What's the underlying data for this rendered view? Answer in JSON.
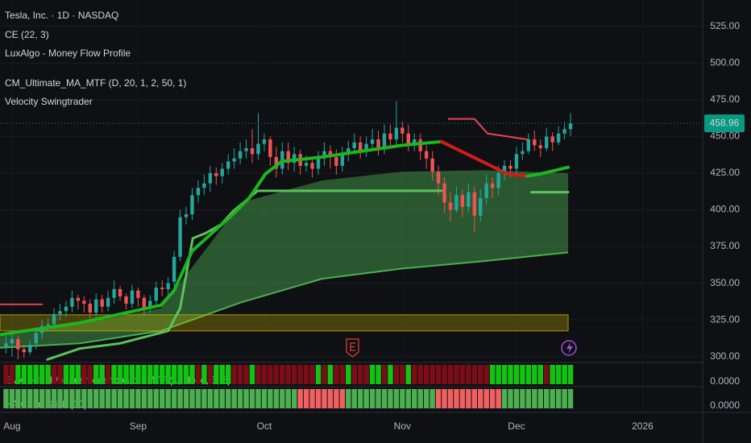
{
  "chart_data": {
    "type": "candlestick",
    "title": "Tesla, Inc. · 1D · NASDAQ",
    "indicators": [
      "CE (22, 3)",
      "LuxAlgo - Money Flow Profile",
      "CM_Ultimate_MA_MTF (D, 20, 1, 2, 50, 1)",
      "Velocity Swingtrader"
    ],
    "xlim": [
      -1,
      116
    ],
    "xticks": [
      {
        "value": 1,
        "label": "Aug"
      },
      {
        "value": 22,
        "label": "Sep"
      },
      {
        "value": 43,
        "label": "Oct"
      },
      {
        "value": 66,
        "label": "Nov"
      },
      {
        "value": 85,
        "label": "Dec"
      },
      {
        "value": 106,
        "label": "2026"
      }
    ],
    "ylim": [
      296,
      543
    ],
    "yticks": [
      {
        "value": 300,
        "label": "300.00"
      },
      {
        "value": 325,
        "label": "325.00"
      },
      {
        "value": 350,
        "label": "350.00"
      },
      {
        "value": 375,
        "label": "375.00"
      },
      {
        "value": 400,
        "label": "400.00"
      },
      {
        "value": 425,
        "label": "425.00"
      },
      {
        "value": 450,
        "label": "450.00"
      },
      {
        "value": 475,
        "label": "475.00"
      },
      {
        "value": 500,
        "label": "500.00"
      },
      {
        "value": 525,
        "label": "525.00"
      }
    ],
    "grid": true,
    "up_color": "#26a69a",
    "down_color": "#ef5350",
    "open": [
      306,
      309,
      312,
      305,
      303,
      309,
      316,
      321,
      322,
      329,
      331,
      334,
      340,
      338,
      336,
      330,
      339,
      334,
      340,
      346,
      341,
      336,
      345,
      340,
      333,
      338,
      347,
      346,
      351,
      368,
      395,
      397,
      410,
      415,
      418,
      425,
      423,
      428,
      433,
      435,
      440,
      442,
      438,
      445,
      448,
      436,
      428,
      440,
      432,
      438,
      430,
      432,
      428,
      435,
      440,
      436,
      430,
      438,
      442,
      446,
      440,
      445,
      448,
      441,
      452,
      448,
      456,
      452,
      445,
      448,
      440,
      435,
      426,
      418,
      405,
      400,
      410,
      402,
      412,
      396,
      408,
      418,
      415,
      425,
      430,
      428,
      438,
      440,
      448,
      444,
      442,
      450,
      446,
      452,
      455
    ],
    "high": [
      314,
      316,
      314,
      308,
      311,
      319,
      325,
      326,
      333,
      336,
      338,
      345,
      342,
      341,
      339,
      343,
      342,
      345,
      352,
      348,
      343,
      349,
      347,
      342,
      342,
      351,
      352,
      354,
      372,
      400,
      402,
      415,
      420,
      424,
      430,
      429,
      432,
      438,
      442,
      446,
      448,
      455,
      466,
      452,
      450,
      443,
      446,
      446,
      443,
      441,
      437,
      436,
      440,
      446,
      444,
      441,
      443,
      447,
      452,
      450,
      450,
      455,
      454,
      458,
      458,
      474,
      460,
      458,
      452,
      452,
      444,
      440,
      430,
      422,
      412,
      416,
      414,
      418,
      416,
      414,
      424,
      422,
      430,
      434,
      434,
      443,
      446,
      452,
      454,
      448,
      456,
      453,
      457,
      460,
      466
    ],
    "low": [
      302,
      300,
      298,
      299,
      301,
      305,
      312,
      317,
      318,
      325,
      327,
      330,
      332,
      330,
      326,
      327,
      330,
      331,
      336,
      338,
      332,
      333,
      334,
      328,
      330,
      334,
      341,
      342,
      346,
      365,
      390,
      393,
      405,
      410,
      412,
      417,
      418,
      424,
      428,
      431,
      435,
      432,
      434,
      440,
      430,
      422,
      424,
      427,
      426,
      424,
      426,
      422,
      424,
      430,
      428,
      424,
      426,
      433,
      438,
      435,
      436,
      440,
      437,
      438,
      442,
      444,
      446,
      440,
      440,
      434,
      428,
      420,
      410,
      398,
      392,
      398,
      395,
      398,
      385,
      392,
      404,
      408,
      410,
      420,
      422,
      424,
      434,
      438,
      440,
      436,
      440,
      440,
      444,
      448,
      450
    ],
    "close": [
      309,
      312,
      305,
      303,
      308,
      316,
      321,
      322,
      329,
      331,
      334,
      340,
      338,
      336,
      330,
      339,
      334,
      340,
      346,
      341,
      336,
      345,
      340,
      333,
      338,
      347,
      346,
      350,
      368,
      395,
      397,
      410,
      415,
      418,
      425,
      423,
      428,
      433,
      435,
      440,
      442,
      438,
      445,
      448,
      436,
      428,
      440,
      432,
      438,
      430,
      432,
      428,
      435,
      440,
      436,
      430,
      438,
      442,
      446,
      440,
      445,
      448,
      441,
      452,
      448,
      456,
      452,
      445,
      448,
      440,
      435,
      426,
      418,
      405,
      400,
      410,
      402,
      412,
      396,
      408,
      418,
      415,
      425,
      430,
      428,
      438,
      440,
      448,
      444,
      442,
      450,
      446,
      452,
      455,
      458.96
    ],
    "last_price": 458.96,
    "last_price_color": "#089981",
    "band": {
      "color": "#4caf50",
      "x": [
        -1,
        12.3,
        25.8,
        39.2,
        52.6,
        66,
        79.5,
        93.6
      ],
      "upper": [
        315,
        322,
        333,
        405,
        420,
        426,
        427,
        425
      ],
      "lower": [
        306,
        309,
        317.5,
        337,
        353,
        360,
        365,
        371
      ]
    },
    "zone": {
      "color": "#c8b400",
      "from": 317.5,
      "to": 328.5,
      "x": [
        -1,
        93.6
      ]
    },
    "lines": [
      {
        "color": "#e04050",
        "width": 2,
        "x": [
          -1,
          6
        ],
        "values": [
          335.6,
          335.6
        ]
      },
      {
        "color": "#5cc35c",
        "width": 3,
        "x": [
          6.9,
          12.3,
          19,
          27,
          29,
          31.1,
          33.2,
          35.8,
          37.8,
          41.9,
          72.5,
          null,
          87.5,
          93.6
        ],
        "values": [
          298,
          305.5,
          309,
          317.5,
          333,
          380.6,
          384,
          390,
          399,
          413,
          413,
          null,
          412,
          412
        ]
      },
      {
        "color": "#1fb51f",
        "width": 4,
        "x": [
          -1,
          12.3,
          25.8,
          28,
          31,
          37.8,
          40.5,
          43.2,
          45.9,
          52.6,
          59.3,
          66,
          72.5
        ],
        "values": [
          315,
          323,
          335,
          345,
          372,
          397,
          408,
          424.5,
          433,
          436,
          440,
          444,
          446.5
        ]
      },
      {
        "color": "#d01c1c",
        "width": 4,
        "x": [
          72.5,
          78,
          83.5,
          86.8
        ],
        "values": [
          446.5,
          435.5,
          424.5,
          423
        ]
      },
      {
        "color": "#1fb51f",
        "width": 4,
        "x": [
          86.8,
          89,
          93.6
        ],
        "values": [
          423,
          424.5,
          429
        ]
      },
      {
        "color": "#e8454f",
        "width": 2,
        "x": [
          73.7,
          78,
          80.2,
          86.8
        ],
        "values": [
          462,
          462,
          452,
          448
        ]
      }
    ],
    "panes": [
      {
        "title": "EMA bullish/bearish dashboard - MTF (1, close, 5, 5)",
        "ticks": [
          {
            "value": 0,
            "label": "0.0000"
          }
        ],
        "runs": [
          [
            0,
            1,
            "#7b0d17"
          ],
          [
            2,
            7,
            "#13c313"
          ],
          [
            8,
            9,
            "#7b0d17"
          ],
          [
            10,
            12,
            "#13c313"
          ],
          [
            13,
            14,
            "#7b0d17"
          ],
          [
            15,
            16,
            "#13c313"
          ],
          [
            17,
            17,
            "#7b0d17"
          ],
          [
            18,
            31,
            "#13c313"
          ],
          [
            32,
            32,
            "#7b0d17"
          ],
          [
            33,
            33,
            "#13c313"
          ],
          [
            34,
            34,
            "#7b0d17"
          ],
          [
            35,
            37,
            "#13c313"
          ],
          [
            38,
            40,
            "#7b0d17"
          ],
          [
            41,
            41,
            "#13c313"
          ],
          [
            42,
            51,
            "#7b0d17"
          ],
          [
            52,
            52,
            "#13c313"
          ],
          [
            53,
            53,
            "#7b0d17"
          ],
          [
            54,
            54,
            "#13c313"
          ],
          [
            55,
            56,
            "#7b0d17"
          ],
          [
            57,
            57,
            "#13c313"
          ],
          [
            58,
            60,
            "#7b0d17"
          ],
          [
            61,
            62,
            "#13c313"
          ],
          [
            63,
            63,
            "#7b0d17"
          ],
          [
            64,
            64,
            "#13c313"
          ],
          [
            65,
            66,
            "#7b0d17"
          ],
          [
            67,
            67,
            "#13c313"
          ],
          [
            68,
            80,
            "#7b0d17"
          ],
          [
            81,
            89,
            "#13c313"
          ],
          [
            90,
            90,
            "#7b0d17"
          ],
          [
            91,
            94,
            "#13c313"
          ]
        ]
      },
      {
        "title": "HA Color Stick (10)",
        "ticks": [
          {
            "value": 0,
            "label": "0.0000"
          }
        ],
        "runs": [
          [
            0,
            48,
            "#4caf50"
          ],
          [
            49,
            56,
            "#f06060"
          ],
          [
            57,
            71,
            "#4caf50"
          ],
          [
            72,
            82,
            "#f06060"
          ],
          [
            83,
            94,
            "#4caf50"
          ]
        ]
      }
    ]
  }
}
